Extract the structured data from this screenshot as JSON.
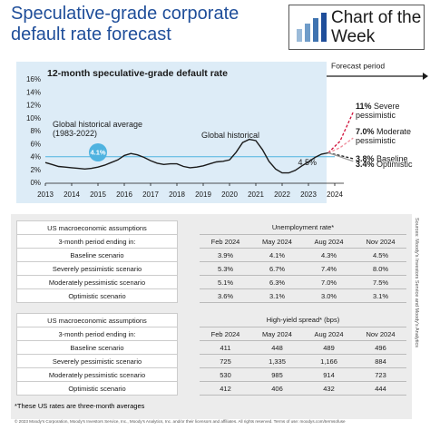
{
  "header": {
    "title": "Speculative-grade corporate default rate forecast",
    "logo": "Chart of the Week"
  },
  "chart_data": {
    "type": "line",
    "title": "12-month speculative-grade default rate",
    "forecast_label": "Forecast period",
    "xlim": [
      2013,
      2024
    ],
    "xticks": [
      2013,
      2014,
      2015,
      2016,
      2017,
      2018,
      2019,
      2020,
      2021,
      2022,
      2023,
      2024
    ],
    "ylim": [
      0,
      16
    ],
    "yticks": [
      {
        "value": 0,
        "label": "0%"
      },
      {
        "value": 2,
        "label": "2%"
      },
      {
        "value": 4,
        "label": "4%"
      },
      {
        "value": 6,
        "label": "6%"
      },
      {
        "value": 8,
        "label": "8%"
      },
      {
        "value": 10,
        "label": "10%"
      },
      {
        "value": 12,
        "label": "12%"
      },
      {
        "value": 14,
        "label": "14%"
      },
      {
        "value": 16,
        "label": "16%"
      }
    ],
    "grid": false,
    "average": {
      "label": "Global historical average (1983-2022)",
      "value": 4.1,
      "value_label": "4.1%",
      "color": "#4fb3e0"
    },
    "series": [
      {
        "name": "Global historical",
        "color": "#1a1a1a",
        "dashed": false,
        "x": [
          2013,
          2013.25,
          2013.5,
          2013.75,
          2014,
          2014.25,
          2014.5,
          2014.75,
          2015,
          2015.25,
          2015.5,
          2015.75,
          2016,
          2016.25,
          2016.5,
          2016.75,
          2017,
          2017.25,
          2017.5,
          2017.75,
          2018,
          2018.25,
          2018.5,
          2018.75,
          2019,
          2019.25,
          2019.5,
          2019.75,
          2020,
          2020.25,
          2020.5,
          2020.75,
          2021,
          2021.25,
          2021.5,
          2021.75,
          2022,
          2022.25,
          2022.5,
          2022.75,
          2023,
          2023.25,
          2023.5,
          2023.75
        ],
        "values": [
          3.2,
          2.9,
          2.6,
          2.5,
          2.4,
          2.3,
          2.2,
          2.3,
          2.5,
          2.8,
          3.2,
          3.6,
          4.3,
          4.6,
          4.4,
          4.0,
          3.5,
          3.1,
          2.9,
          3.0,
          3.0,
          2.6,
          2.4,
          2.5,
          2.7,
          3.0,
          3.3,
          3.4,
          3.6,
          4.8,
          6.3,
          6.8,
          6.6,
          5.2,
          3.4,
          2.2,
          1.6,
          1.6,
          2.0,
          2.7,
          3.3,
          4.0,
          4.5,
          4.7
        ],
        "value_labels": [
          null,
          null,
          null,
          null,
          null,
          null,
          null,
          null,
          null,
          null,
          null,
          null,
          null,
          null,
          null,
          null,
          null,
          null,
          null,
          null,
          null,
          null,
          null,
          null,
          null,
          null,
          null,
          null,
          null,
          null,
          null,
          null,
          null,
          null,
          null,
          null,
          null,
          null,
          null,
          null,
          null,
          null,
          "4.5%",
          null
        ]
      },
      {
        "name": "Severe pessimistic",
        "color": "#d0103a",
        "dashed": true,
        "x": [
          2023.75,
          2024.2,
          2024.7
        ],
        "values": [
          4.7,
          6.5,
          11
        ],
        "value_labels": [
          null,
          null,
          "11%"
        ]
      },
      {
        "name": "Moderate pessimistic",
        "color": "#ee8a99",
        "dashed": true,
        "x": [
          2023.75,
          2024.2,
          2024.7
        ],
        "values": [
          4.7,
          5.5,
          7.0
        ],
        "value_labels": [
          null,
          null,
          "7.0%"
        ]
      },
      {
        "name": "Baseline",
        "color": "#1a1a1a",
        "dashed": true,
        "x": [
          2023.75,
          2024.2,
          2024.7
        ],
        "values": [
          4.7,
          4.3,
          3.8
        ],
        "value_labels": [
          null,
          null,
          "3.8%"
        ]
      },
      {
        "name": "Optimistic",
        "color": "#9a9a9a",
        "dashed": false,
        "x": [
          2023.75,
          2024.2,
          2024.7
        ],
        "values": [
          4.7,
          4.1,
          3.4
        ],
        "value_labels": [
          null,
          null,
          "3.4%"
        ]
      }
    ]
  },
  "tables": [
    {
      "header": "US macroeconomic assumptions",
      "measure": "Unemployment rate*",
      "period_label": "3-month period ending in:",
      "columns": [
        "Feb 2024",
        "May 2024",
        "Aug 2024",
        "Nov 2024"
      ],
      "rows": [
        [
          "Baseline scenario",
          "3.9%",
          "4.1%",
          "4.3%",
          "4.5%"
        ],
        [
          "Severely pessimistic scenario",
          "5.3%",
          "6.7%",
          "7.4%",
          "8.0%"
        ],
        [
          "Moderately pessimistic scenario",
          "5.1%",
          "6.3%",
          "7.0%",
          "7.5%"
        ],
        [
          "Optimistic scenario",
          "3.6%",
          "3.1%",
          "3.0%",
          "3.1%"
        ]
      ]
    },
    {
      "header": "US macroeconomic assumptions",
      "measure": "High-yield spread* (bps)",
      "period_label": "3-month period ending in:",
      "columns": [
        "Feb 2024",
        "May 2024",
        "Aug 2024",
        "Nov 2024"
      ],
      "rows": [
        [
          "Baseline scenario",
          "411",
          "448",
          "489",
          "496"
        ],
        [
          "Severely pessimistic scenario",
          "725",
          "1,335",
          "1,166",
          "884"
        ],
        [
          "Moderately pessimistic scenario",
          "530",
          "985",
          "914",
          "723"
        ],
        [
          "Optimistic scenario",
          "412",
          "406",
          "432",
          "444"
        ]
      ]
    }
  ],
  "footnote": "*These US rates are three-month averages",
  "copyright": "© 2023 Moody's Corporation, Moody's Investors Service, Inc., Moody's Analytics, Inc. and/or their licensors and affiliates. All rights reserved. Terms of use: moodys.com/termsofuse",
  "source": "Sources: Moody's Investors Service and Moody's Analytics"
}
